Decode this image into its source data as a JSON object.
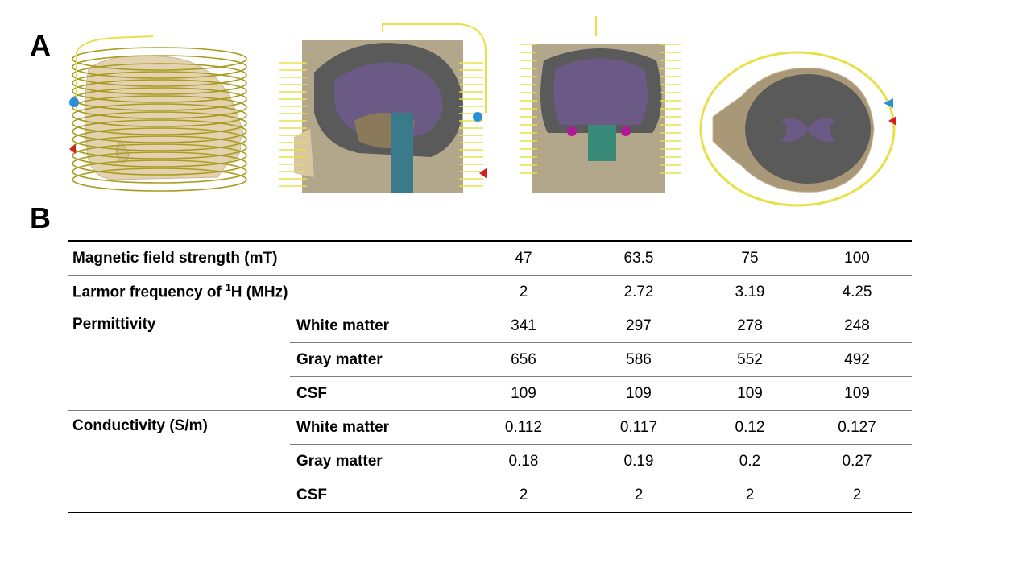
{
  "panels": {
    "a": "A",
    "b": "B"
  },
  "table": {
    "columns": [
      "47",
      "63.5",
      "75",
      "100"
    ],
    "field_strength": {
      "label": "Magnetic field strength (mT)",
      "values": [
        "47",
        "63.5",
        "75",
        "100"
      ]
    },
    "larmor": {
      "label_pre": "Larmor frequency of ",
      "label_sup": "1",
      "label_post": "H (MHz)",
      "values": [
        "2",
        "2.72",
        "3.19",
        "4.25"
      ]
    },
    "permittivity": {
      "label": "Permittivity",
      "rows": [
        {
          "tissue": "White matter",
          "values": [
            "341",
            "297",
            "278",
            "248"
          ]
        },
        {
          "tissue": "Gray matter",
          "values": [
            "656",
            "586",
            "552",
            "492"
          ]
        },
        {
          "tissue": "CSF",
          "values": [
            "109",
            "109",
            "109",
            "109"
          ]
        }
      ]
    },
    "conductivity": {
      "label": "Conductivity (S/m)",
      "rows": [
        {
          "tissue": "White matter",
          "values": [
            "0.112",
            "0.117",
            "0.12",
            "0.127"
          ]
        },
        {
          "tissue": "Gray matter",
          "values": [
            "0.18",
            "0.19",
            "0.2",
            "0.27"
          ]
        },
        {
          "tissue": "CSF",
          "values": [
            "2",
            "2",
            "2",
            "2"
          ]
        }
      ]
    }
  },
  "colors": {
    "coil": "#e8e04a",
    "skin": "#e3d2b0",
    "brain_gray": "#5a5a5a",
    "white_matter": "#6b5a86",
    "port_blue": "#2a8fd6",
    "port_red": "#d42020"
  }
}
